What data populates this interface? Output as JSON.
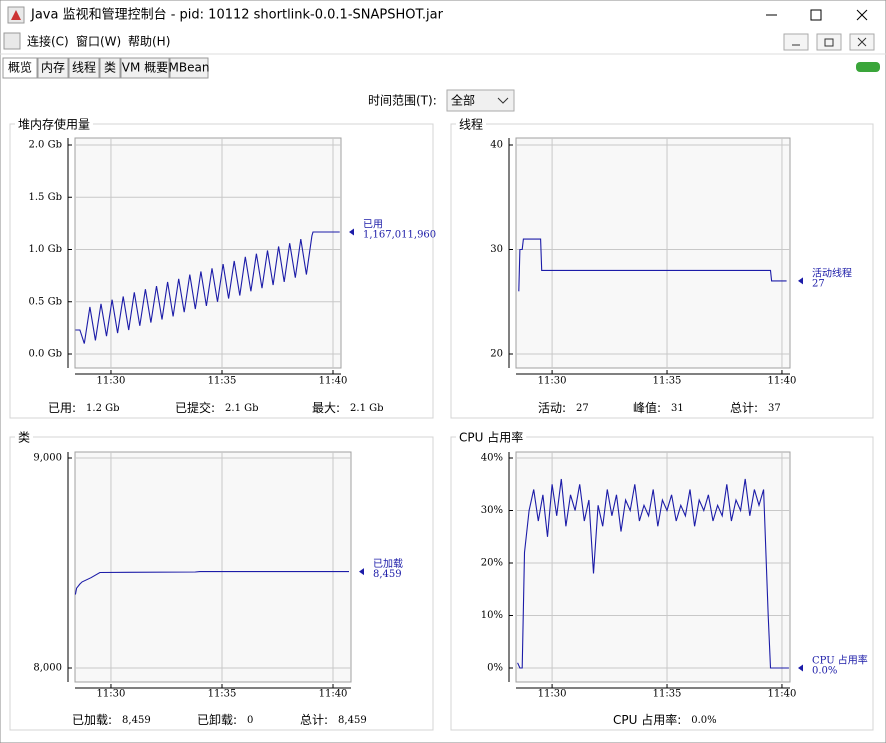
{
  "window": {
    "title": "Java 监视和管理控制台 - pid: 10112 shortlink-0.0.1-SNAPSHOT.jar"
  },
  "menu": [
    "连接(C)",
    "窗口(W)",
    "帮助(H)"
  ],
  "tabs": [
    "概览",
    "内存",
    "线程",
    "类",
    "VM 概要",
    "MBean"
  ],
  "time_range": {
    "label": "时间范围(T):",
    "selected": "全部"
  },
  "chart_data": [
    {
      "type": "line",
      "title": "堆内存使用量",
      "grid": true,
      "xlim": [
        28.38,
        40.36
      ],
      "xticks": [
        {
          "value": 30,
          "label": "11:30"
        },
        {
          "value": 35,
          "label": "11:35"
        },
        {
          "value": 40,
          "label": "11:40"
        }
      ],
      "ylim": [
        0,
        2
      ],
      "yticks": [
        {
          "value": 0,
          "label": "0.0 Gb"
        },
        {
          "value": 0.5,
          "label": "0.5 Gb"
        },
        {
          "value": 1,
          "label": "1.0 Gb"
        },
        {
          "value": 1.5,
          "label": "1.5 Gb"
        },
        {
          "value": 2,
          "label": "2.0 Gb"
        }
      ],
      "series": [
        {
          "name": "已用",
          "color": "#1c1ca8",
          "current_label": "1,167,011,960",
          "x": [
            28.4,
            28.6,
            28.8,
            29.05,
            29.3,
            29.55,
            29.8,
            30.05,
            30.3,
            30.55,
            30.8,
            31.05,
            31.3,
            31.55,
            31.8,
            32.05,
            32.3,
            32.55,
            32.8,
            33.05,
            33.3,
            33.55,
            33.8,
            34.05,
            34.3,
            34.55,
            34.8,
            35.05,
            35.3,
            35.55,
            35.8,
            36.05,
            36.3,
            36.55,
            36.8,
            37.05,
            37.3,
            37.55,
            37.8,
            38.05,
            38.3,
            38.55,
            38.8,
            39.05,
            39.1,
            40.3
          ],
          "values": [
            0.23,
            0.23,
            0.1,
            0.45,
            0.13,
            0.48,
            0.17,
            0.52,
            0.2,
            0.55,
            0.23,
            0.59,
            0.27,
            0.62,
            0.3,
            0.65,
            0.33,
            0.69,
            0.36,
            0.72,
            0.4,
            0.76,
            0.43,
            0.79,
            0.46,
            0.82,
            0.5,
            0.86,
            0.53,
            0.89,
            0.56,
            0.93,
            0.6,
            0.96,
            0.63,
            0.99,
            0.66,
            1.03,
            0.69,
            1.06,
            0.73,
            1.1,
            0.76,
            1.13,
            1.167,
            1.167
          ]
        }
      ],
      "footer": [
        {
          "label": "已用:",
          "value": "1.2 Gb"
        },
        {
          "label": "已提交:",
          "value": "2.1 Gb"
        },
        {
          "label": "最大:",
          "value": "2.1 Gb"
        }
      ]
    },
    {
      "type": "line",
      "title": "线程",
      "grid": true,
      "xlim": [
        28.43,
        40.35
      ],
      "xticks": [
        {
          "value": 30,
          "label": "11:30"
        },
        {
          "value": 35,
          "label": "11:35"
        },
        {
          "value": 40,
          "label": "11:40"
        }
      ],
      "ylim": [
        20,
        40
      ],
      "yticks": [
        20,
        30,
        40
      ],
      "series": [
        {
          "name": "活动线程",
          "color": "#1c1ca8",
          "current_label": "27",
          "x": [
            28.55,
            28.6,
            28.7,
            28.75,
            29.5,
            29.55,
            39.5,
            39.55,
            40.2
          ],
          "values": [
            26,
            30,
            30,
            31,
            31,
            28,
            28,
            27,
            27
          ]
        }
      ],
      "footer": [
        {
          "label": "活动:",
          "value": "27"
        },
        {
          "label": "峰值:",
          "value": "31"
        },
        {
          "label": "总计:",
          "value": "37"
        }
      ]
    },
    {
      "type": "line",
      "title": "类",
      "grid": true,
      "xlim": [
        28.38,
        40.81
      ],
      "xticks": [
        {
          "value": 30,
          "label": "11:30"
        },
        {
          "value": 35,
          "label": "11:35"
        },
        {
          "value": 40,
          "label": "11:40"
        }
      ],
      "ylim": [
        8000,
        9000
      ],
      "yticks": [
        {
          "value": 8000,
          "label": "8,000"
        },
        {
          "value": 9000,
          "label": "9,000"
        }
      ],
      "series": [
        {
          "name": "已加载",
          "color": "#1c1ca8",
          "current_label": "8,459",
          "x": [
            28.4,
            28.45,
            28.6,
            28.7,
            29.1,
            29.5,
            33.8,
            34.0,
            40.72
          ],
          "values": [
            8350,
            8380,
            8400,
            8410,
            8430,
            8455,
            8457,
            8459,
            8459
          ]
        }
      ],
      "footer": [
        {
          "label": "已加载:",
          "value": "8,459"
        },
        {
          "label": "已卸载:",
          "value": "0"
        },
        {
          "label": "总计:",
          "value": "8,459"
        }
      ]
    },
    {
      "type": "line",
      "title": "CPU 占用率",
      "grid": true,
      "xlim": [
        28.43,
        40.35
      ],
      "xticks": [
        {
          "value": 30,
          "label": "11:30"
        },
        {
          "value": 35,
          "label": "11:35"
        },
        {
          "value": 40,
          "label": "11:40"
        }
      ],
      "ylim": [
        0,
        40
      ],
      "yticks": [
        {
          "value": 0,
          "label": "0%"
        },
        {
          "value": 10,
          "label": "10%"
        },
        {
          "value": 20,
          "label": "20%"
        },
        {
          "value": 30,
          "label": "30%"
        },
        {
          "value": 40,
          "label": "40%"
        }
      ],
      "series": [
        {
          "name": "CPU 占用率",
          "color": "#1c1ca8",
          "current_label": "0.0%",
          "x": [
            28.5,
            28.6,
            28.7,
            28.8,
            29.0,
            29.2,
            29.4,
            29.6,
            29.8,
            30.0,
            30.2,
            30.4,
            30.6,
            30.8,
            31.0,
            31.2,
            31.4,
            31.6,
            31.8,
            32.0,
            32.2,
            32.4,
            32.6,
            32.8,
            33.0,
            33.2,
            33.4,
            33.6,
            33.8,
            34.0,
            34.2,
            34.4,
            34.6,
            34.8,
            35.0,
            35.2,
            35.4,
            35.6,
            35.8,
            36.0,
            36.2,
            36.4,
            36.6,
            36.8,
            37.0,
            37.2,
            37.4,
            37.6,
            37.8,
            38.0,
            38.2,
            38.4,
            38.6,
            38.8,
            39.0,
            39.2,
            39.4,
            39.5,
            40.3
          ],
          "values": [
            1,
            0,
            0,
            22,
            30,
            34,
            28,
            33,
            25,
            35,
            29,
            36,
            27,
            33,
            30,
            35,
            28,
            32,
            18,
            31,
            27,
            34,
            29,
            33,
            26,
            32,
            30,
            35,
            28,
            31,
            29,
            34,
            27,
            32,
            30,
            33,
            28,
            31,
            29,
            34,
            27,
            32,
            30,
            33,
            28,
            31,
            29,
            35,
            28,
            32,
            30,
            36,
            29,
            34,
            31,
            34,
            10,
            0,
            0
          ]
        }
      ],
      "footer": [
        {
          "label": "CPU 占用率:",
          "value": "0.0%"
        }
      ]
    }
  ]
}
